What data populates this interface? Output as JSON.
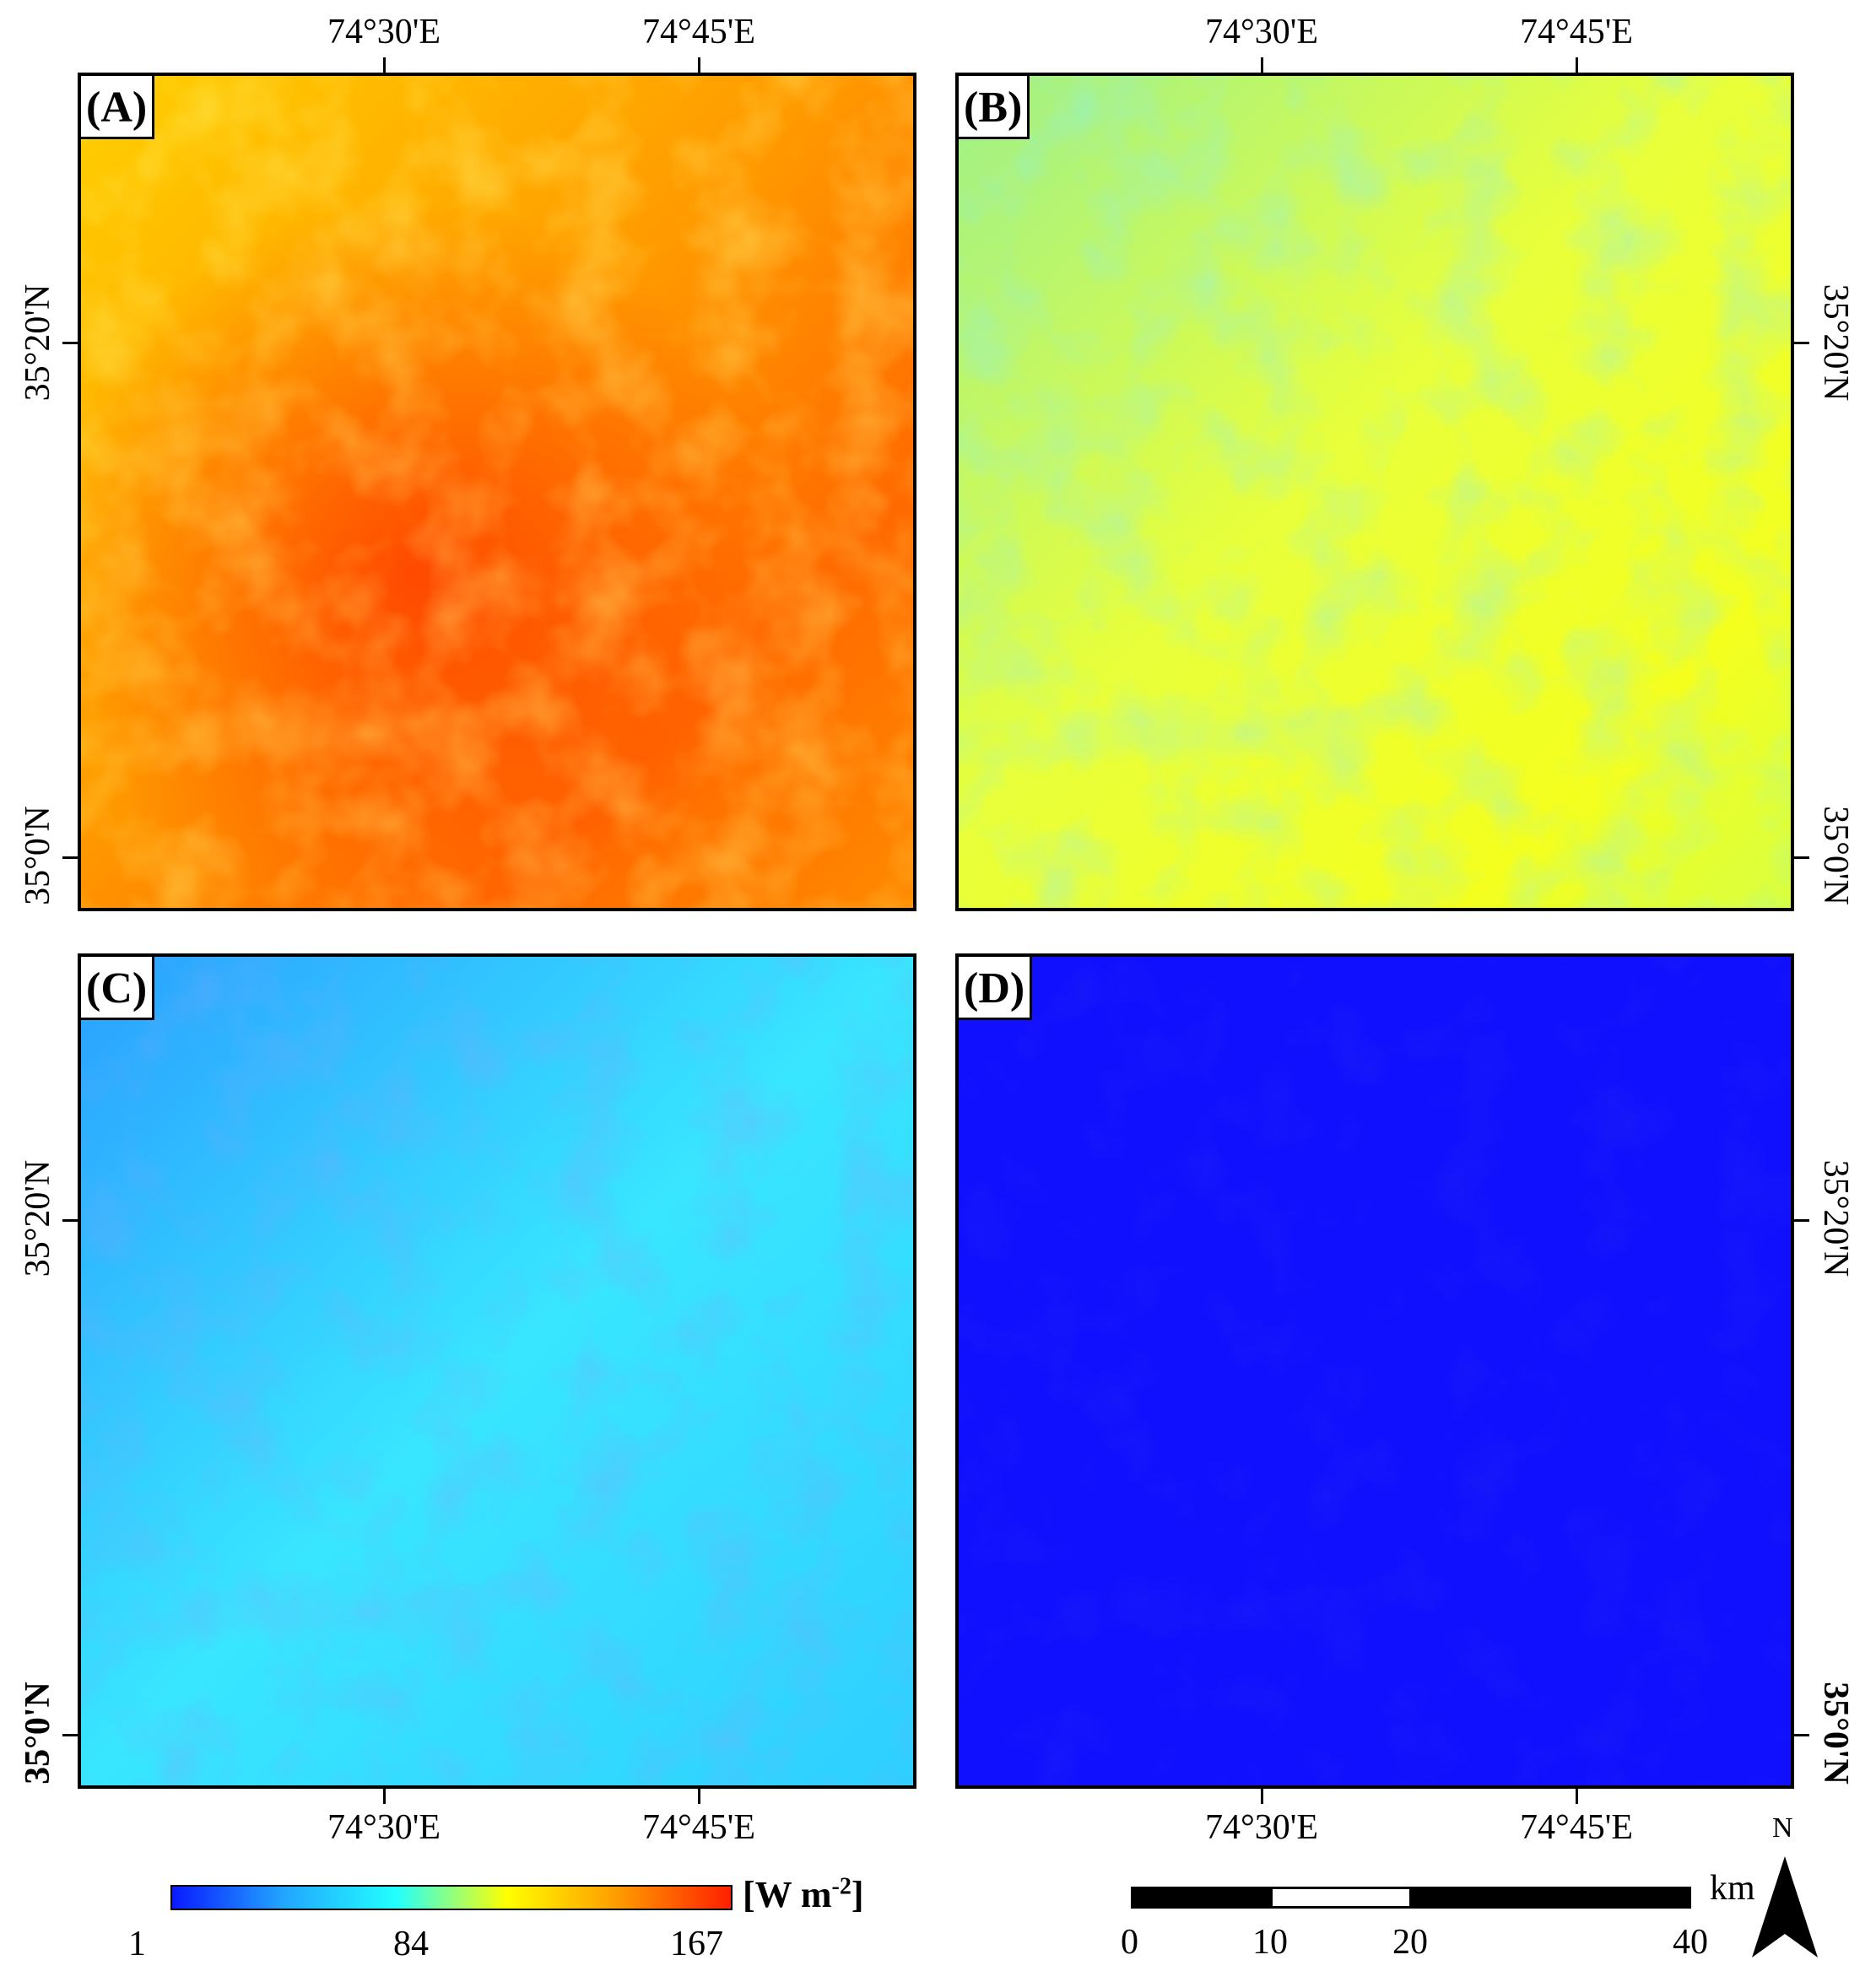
{
  "panels": [
    {
      "label": "(A)",
      "palette": "warm"
    },
    {
      "label": "(B)",
      "palette": "yellow-cyan"
    },
    {
      "label": "(C)",
      "palette": "cyan"
    },
    {
      "label": "(D)",
      "palette": "blue"
    }
  ],
  "axes": {
    "lon_ticks": [
      "74°30'E",
      "74°45'E"
    ],
    "lat_ticks": [
      "35°20'N",
      "35°0'N"
    ]
  },
  "colorbar": {
    "min_label": "1",
    "mid_label": "84",
    "max_label": "167",
    "unit_base": "[W m",
    "unit_exp": "-2",
    "unit_close": "]",
    "colors": [
      "#0a1aff",
      "#22a6ff",
      "#22ffff",
      "#ffff00",
      "#ff9a00",
      "#ff2000"
    ]
  },
  "scalebar": {
    "labels": [
      "0",
      "10",
      "20",
      "40"
    ],
    "unit": "km"
  },
  "north_arrow": {
    "label": "N"
  }
}
